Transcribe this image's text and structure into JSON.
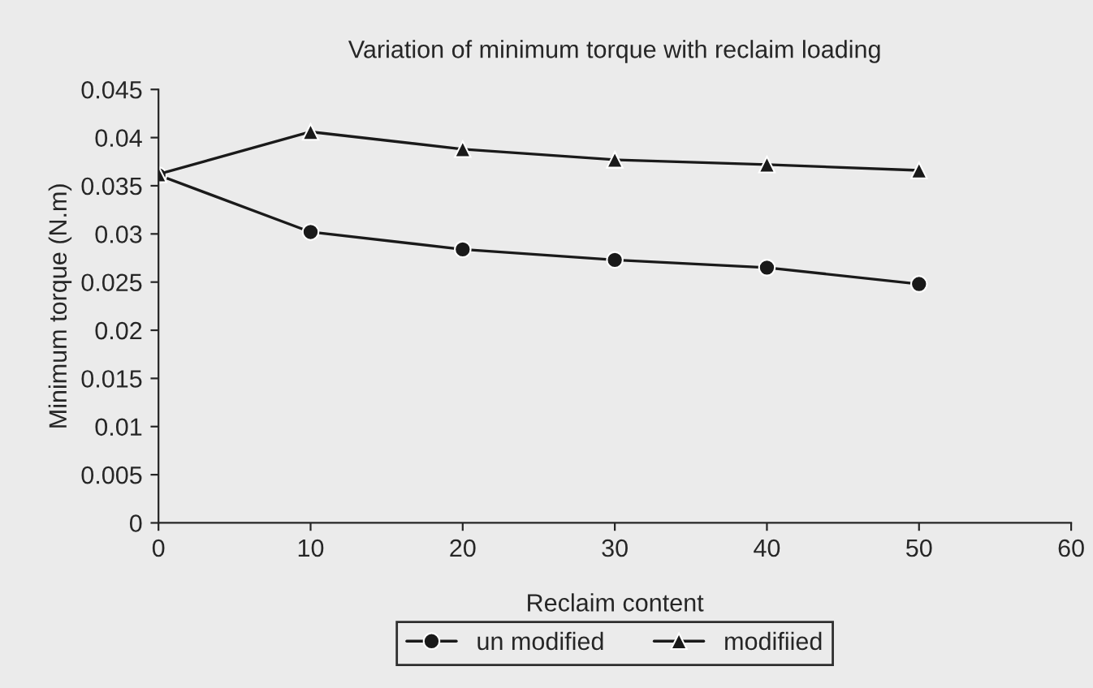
{
  "chart_data": {
    "type": "line",
    "title": "Variation of minimum torque with reclaim loading",
    "xlabel": "Reclaim content",
    "ylabel": "Minimum torque (N.m)",
    "x": [
      0,
      10,
      20,
      30,
      40,
      50
    ],
    "series": [
      {
        "name": "un modified",
        "color": "#1a1a1a",
        "marker": "circle",
        "values": [
          0.0361,
          0.0302,
          0.0284,
          0.0273,
          0.0265,
          0.0248
        ]
      },
      {
        "name": "modifiied",
        "color": "#1a1a1a",
        "marker": "triangle",
        "values": [
          0.0362,
          0.0406,
          0.0388,
          0.0377,
          0.0372,
          0.0366
        ]
      }
    ],
    "xlim": [
      0,
      60
    ],
    "xticks": [
      0,
      10,
      20,
      30,
      40,
      50,
      60
    ],
    "ylim": [
      0,
      0.045
    ],
    "yticks": [
      0,
      0.005,
      0.01,
      0.015,
      0.02,
      0.025,
      0.03,
      0.035,
      0.04,
      0.045
    ],
    "grid": false,
    "legend": "bottom",
    "line_style": "solid"
  }
}
